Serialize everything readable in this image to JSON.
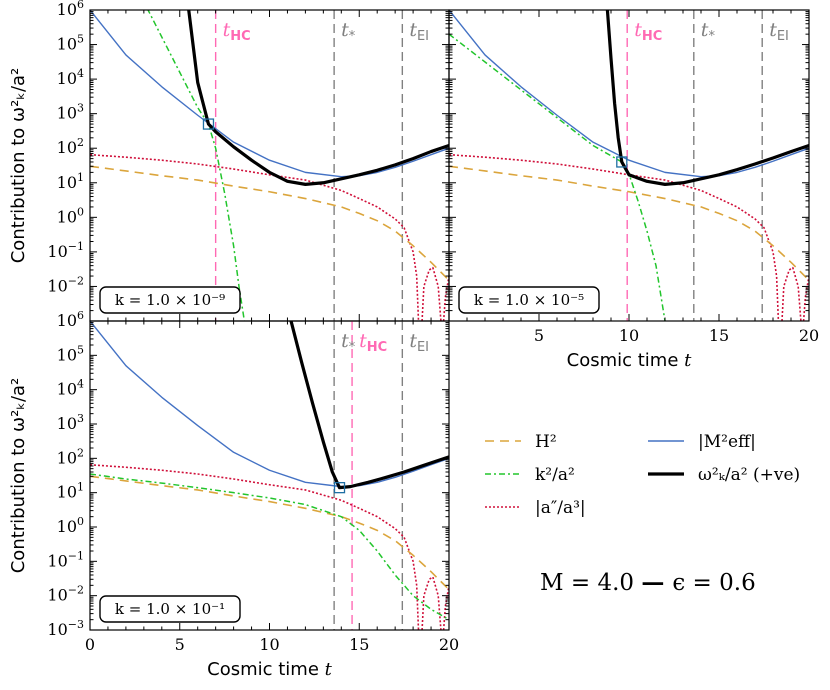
{
  "chart_data": [
    {
      "id": "top-left",
      "type": "line",
      "box_label": "k = 1.0 × 10⁻⁹",
      "k_exp": "−9",
      "xlabel": "",
      "ylabel": "Contribution to ω²ₖ/a²",
      "xlim": [
        0,
        20
      ],
      "ylim": [
        0.001,
        1000000
      ],
      "yscale": "log",
      "show_xticks": false,
      "show_ylabel": true,
      "vlines": [
        {
          "name": "t_HC",
          "x": 7.0,
          "color": "#ff69b4",
          "label_main": "t",
          "label_sub": "HC"
        },
        {
          "name": "t_*",
          "x": 13.6,
          "color": "#808080",
          "label_main": "t",
          "label_sub": "*"
        },
        {
          "name": "t_EI",
          "x": 17.4,
          "color": "#808080",
          "label_main": "t",
          "label_sub": "EI"
        }
      ],
      "marker": {
        "x": 6.6,
        "y": 500
      },
      "k_line": [
        [
          0,
          2000000000.0
        ],
        [
          6.0,
          1500
        ],
        [
          6.6,
          500
        ],
        [
          7.0,
          100
        ],
        [
          7.5,
          5
        ],
        [
          8.0,
          0.15
        ],
        [
          8.3,
          0.01
        ],
        [
          8.6,
          0.001
        ]
      ],
      "omega_line": [
        [
          5.5,
          1000000
        ],
        [
          6.0,
          8000
        ],
        [
          6.3,
          2000
        ],
        [
          6.6,
          500
        ],
        [
          7.0,
          300
        ],
        [
          8,
          110
        ],
        [
          9,
          45
        ],
        [
          10,
          20
        ],
        [
          11,
          11
        ],
        [
          12,
          9
        ],
        [
          13,
          10
        ],
        [
          14,
          13
        ],
        [
          15,
          17
        ],
        [
          16,
          23
        ],
        [
          17,
          33
        ],
        [
          18,
          50
        ],
        [
          19,
          80
        ],
        [
          20,
          120
        ]
      ]
    },
    {
      "id": "top-right",
      "type": "line",
      "box_label": "k = 1.0 × 10⁻⁵",
      "k_exp": "−5",
      "xlabel": "Cosmic time t",
      "ylabel": "",
      "xlim": [
        0,
        20
      ],
      "ylim": [
        0.001,
        1000000
      ],
      "yscale": "log",
      "xticks": [
        5,
        10,
        15,
        20
      ],
      "show_xticks": true,
      "show_ylabel": false,
      "vlines": [
        {
          "name": "t_HC",
          "x": 9.9,
          "color": "#ff69b4",
          "label_main": "t",
          "label_sub": "HC"
        },
        {
          "name": "t_*",
          "x": 13.6,
          "color": "#808080",
          "label_main": "t",
          "label_sub": "*"
        },
        {
          "name": "t_EI",
          "x": 17.4,
          "color": "#808080",
          "label_main": "t",
          "label_sub": "EI"
        }
      ],
      "marker": {
        "x": 9.6,
        "y": 40
      },
      "k_line": [
        [
          0,
          200000.0
        ],
        [
          8,
          120
        ],
        [
          9.6,
          40
        ],
        [
          10,
          18
        ],
        [
          10.5,
          3
        ],
        [
          11,
          0.4
        ],
        [
          11.5,
          0.04
        ],
        [
          12,
          0.001
        ]
      ],
      "omega_line": [
        [
          8.8,
          1000000
        ],
        [
          9.0,
          40000
        ],
        [
          9.2,
          2000
        ],
        [
          9.4,
          200
        ],
        [
          9.6,
          40
        ],
        [
          10,
          17
        ],
        [
          11,
          11
        ],
        [
          12,
          9
        ],
        [
          13,
          10
        ],
        [
          14,
          13
        ],
        [
          15,
          17
        ],
        [
          16,
          24
        ],
        [
          17,
          35
        ],
        [
          18,
          52
        ],
        [
          19,
          80
        ],
        [
          20,
          120
        ]
      ]
    },
    {
      "id": "bottom-left",
      "type": "line",
      "box_label": "k = 1.0 × 10⁻¹",
      "k_exp": "−1",
      "xlabel": "Cosmic time t",
      "ylabel": "Contribution to ω²ₖ/a²",
      "xlim": [
        0,
        20
      ],
      "ylim": [
        0.001,
        1000000
      ],
      "yscale": "log",
      "xticks": [
        0,
        5,
        10,
        15,
        20
      ],
      "show_xticks": true,
      "show_ylabel": true,
      "vlines": [
        {
          "name": "t_*",
          "x": 13.6,
          "color": "#808080",
          "label_main": "t",
          "label_sub": "*"
        },
        {
          "name": "t_HC",
          "x": 14.6,
          "color": "#ff69b4",
          "label_main": "t",
          "label_sub": "HC"
        },
        {
          "name": "t_EI",
          "x": 17.4,
          "color": "#808080",
          "label_main": "t",
          "label_sub": "EI"
        }
      ],
      "marker": {
        "x": 13.9,
        "y": 14
      },
      "k_line": [
        [
          0,
          35
        ],
        [
          2,
          25
        ],
        [
          4,
          19
        ],
        [
          6,
          14
        ],
        [
          8,
          10
        ],
        [
          10,
          7
        ],
        [
          12,
          4.5
        ],
        [
          13,
          3
        ],
        [
          14,
          2
        ],
        [
          15,
          0.8
        ],
        [
          16,
          0.2
        ],
        [
          17,
          0.04
        ],
        [
          18,
          0.01
        ],
        [
          19,
          0.004
        ],
        [
          20,
          0.002
        ]
      ],
      "omega_line": [
        [
          11.2,
          1000000
        ],
        [
          11.8,
          60000
        ],
        [
          12.4,
          4000
        ],
        [
          13.0,
          300
        ],
        [
          13.5,
          40
        ],
        [
          13.9,
          14
        ],
        [
          14.5,
          15
        ],
        [
          15.5,
          20
        ],
        [
          16.5,
          28
        ],
        [
          17.5,
          40
        ],
        [
          18.5,
          60
        ],
        [
          19.5,
          90
        ],
        [
          20,
          110
        ]
      ]
    }
  ],
  "shared_series": {
    "H2": [
      [
        0,
        30
      ],
      [
        2,
        22
      ],
      [
        4,
        16
      ],
      [
        6,
        12
      ],
      [
        8,
        8
      ],
      [
        10,
        5.5
      ],
      [
        12,
        3.5
      ],
      [
        14,
        2
      ],
      [
        15,
        1.3
      ],
      [
        16,
        0.8
      ],
      [
        17,
        0.4
      ],
      [
        18,
        0.15
      ],
      [
        19,
        0.05
      ],
      [
        20,
        0.015
      ]
    ],
    "M_eff": [
      [
        0,
        1000000
      ],
      [
        2,
        50000
      ],
      [
        4,
        6000
      ],
      [
        6,
        900
      ],
      [
        8,
        150
      ],
      [
        10,
        45
      ],
      [
        12,
        20
      ],
      [
        14,
        15
      ],
      [
        15,
        16
      ],
      [
        16,
        20
      ],
      [
        17,
        28
      ],
      [
        18,
        42
      ],
      [
        19,
        65
      ],
      [
        20,
        100
      ]
    ],
    "a_term": [
      [
        0,
        65
      ],
      [
        2,
        55
      ],
      [
        4,
        45
      ],
      [
        6,
        35
      ],
      [
        8,
        25
      ],
      [
        10,
        17
      ],
      [
        12,
        12
      ],
      [
        14,
        6
      ],
      [
        15,
        3.5
      ],
      [
        16,
        2
      ],
      [
        17,
        0.9
      ],
      [
        17.5,
        0.5
      ],
      [
        18,
        0.1
      ],
      [
        18.2,
        0.02
      ],
      [
        18.3,
        0.001
      ]
    ],
    "a_term_tail": [
      [
        18.5,
        0.001
      ],
      [
        18.6,
        0.01
      ],
      [
        18.9,
        0.03
      ],
      [
        19.1,
        0.035
      ],
      [
        19.4,
        0.01
      ],
      [
        19.55,
        0.001
      ]
    ],
    "a_term_tail2": [
      [
        19.7,
        0.001
      ],
      [
        19.8,
        0.005
      ],
      [
        20,
        0.02
      ]
    ]
  },
  "legend": {
    "items": [
      {
        "series": "H2",
        "label": "H²",
        "color": "#dba53c",
        "dash": "9,6",
        "width": 1.6
      },
      {
        "series": "M_eff",
        "label": "|M²eff|",
        "color": "#4472c4",
        "dash": "",
        "width": 1.4
      },
      {
        "series": "k_line",
        "label": "k²/a²",
        "color": "#22c52c",
        "dash": "6,3,2,3",
        "width": 1.5
      },
      {
        "series": "omega_line",
        "label": "ω²ₖ/a² (+ve)",
        "color": "#000000",
        "dash": "",
        "width": 3.2
      },
      {
        "series": "a_term",
        "label": "|a″/a³|",
        "color": "#d0103a",
        "dash": "2,2",
        "width": 1.6
      }
    ]
  },
  "params_text": {
    "M": "M = 4.0",
    "sep": "—",
    "eps": "ϵ = 0.6"
  },
  "colors": {
    "H2": "#dba53c",
    "M_eff": "#4472c4",
    "k_line": "#22c52c",
    "omega_line": "#000000",
    "a_term": "#d0103a",
    "t_HC": "#ff69b4",
    "t_other": "#808080",
    "marker": "#1f6fa3"
  }
}
